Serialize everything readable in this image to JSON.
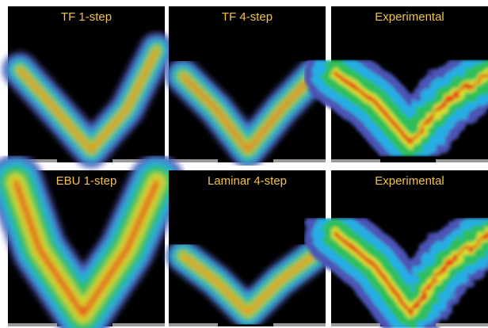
{
  "panels": [
    {
      "label": "TF 1-step"
    },
    {
      "label": "TF 4-step"
    },
    {
      "label": "Experimental"
    },
    {
      "label": "EBU 1-step"
    },
    {
      "label": "Laminar 4-step"
    },
    {
      "label": "Experimental"
    }
  ]
}
